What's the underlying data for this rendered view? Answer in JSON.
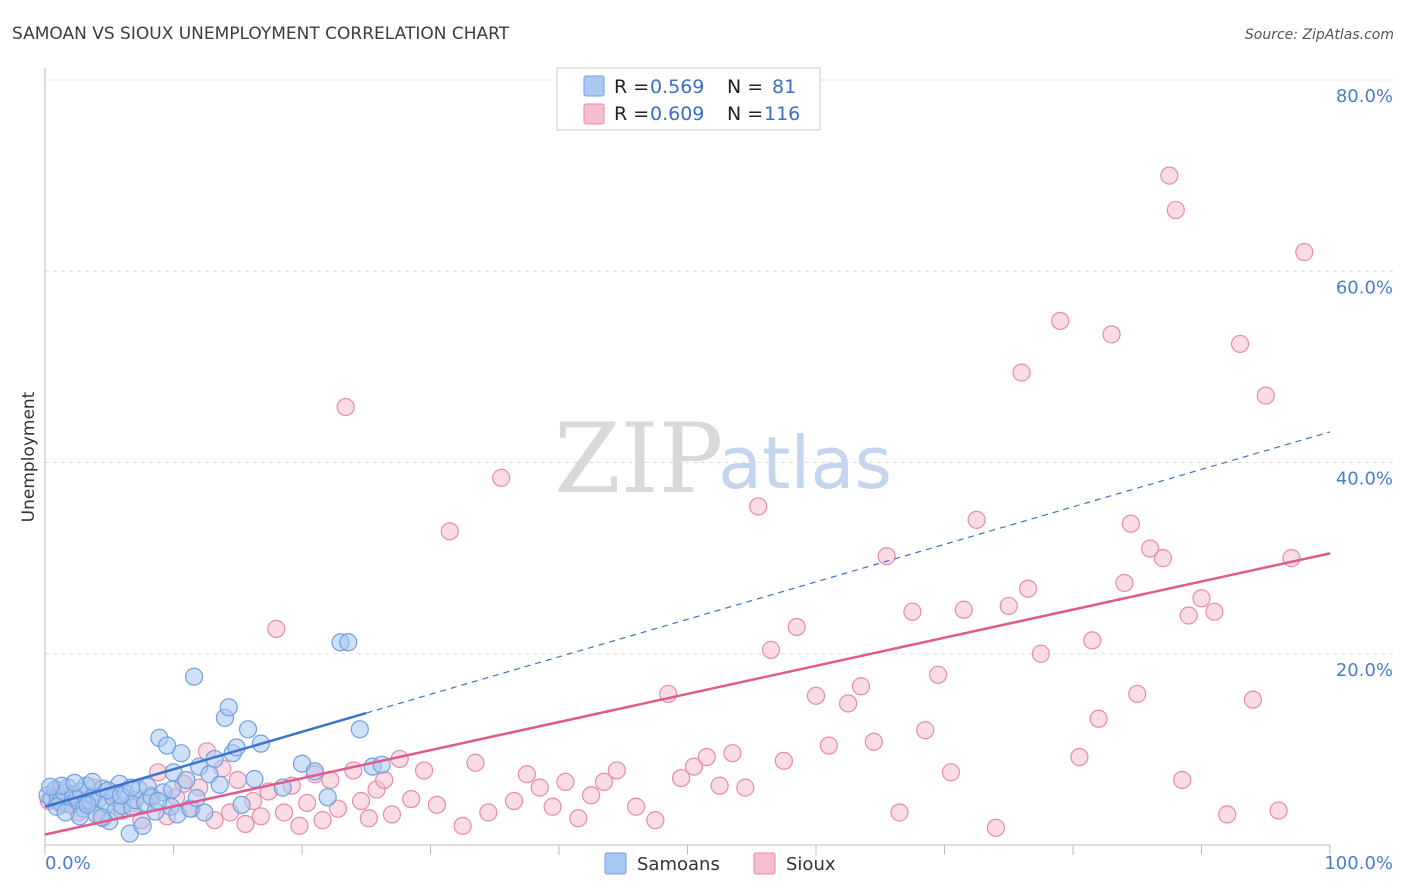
{
  "chart_data": {
    "type": "scatter",
    "title": "SAMOAN VS SIOUX UNEMPLOYMENT CORRELATION CHART",
    "source": "Source: ZipAtlas.com",
    "ylabel": "Unemployment",
    "xlabel": "",
    "xlim": [
      0,
      100
    ],
    "ylim": [
      0,
      80
    ],
    "x_tick_labels": [
      "0.0%",
      "100.0%"
    ],
    "y_ticks": [
      20,
      40,
      60,
      80
    ],
    "y_tick_labels": [
      "20.0%",
      "40.0%",
      "60.0%",
      "80.0%"
    ],
    "watermark": {
      "zip": "ZIP",
      "atlas": "atlas"
    },
    "legend": {
      "r_label": "R =",
      "n_label": "N =",
      "entries": [
        {
          "name": "Samoans",
          "r": "0.569",
          "n": "81"
        },
        {
          "name": "Sioux",
          "r": "0.609",
          "n": "116"
        }
      ]
    },
    "series": [
      {
        "name": "Samoans",
        "color": "#6fa0e0",
        "fill": "#a9c7ef",
        "line_color": "#3a74cc",
        "trend": {
          "x0": 0,
          "y0": 4.0,
          "x1": 25,
          "y1": 13.8,
          "dashed_to_x": 100,
          "dashed_to_y": 43.2
        },
        "points": [
          [
            0.2,
            5.2
          ],
          [
            0.5,
            4.8
          ],
          [
            0.8,
            5.8
          ],
          [
            1.0,
            5.0
          ],
          [
            1.2,
            4.5
          ],
          [
            1.5,
            5.5
          ],
          [
            1.8,
            6.0
          ],
          [
            2.0,
            4.2
          ],
          [
            2.2,
            5.3
          ],
          [
            2.5,
            4.9
          ],
          [
            2.8,
            5.6
          ],
          [
            3.0,
            3.8
          ],
          [
            3.2,
            6.2
          ],
          [
            3.5,
            4.6
          ],
          [
            3.8,
            5.1
          ],
          [
            4.0,
            3.2
          ],
          [
            4.2,
            4.8
          ],
          [
            4.5,
            5.9
          ],
          [
            4.8,
            4.3
          ],
          [
            5.0,
            2.5
          ],
          [
            5.3,
            5.0
          ],
          [
            5.5,
            3.6
          ],
          [
            5.8,
            6.4
          ],
          [
            6.0,
            4.1
          ],
          [
            6.3,
            5.4
          ],
          [
            6.6,
            1.2
          ],
          [
            6.8,
            3.9
          ],
          [
            7.0,
            4.7
          ],
          [
            7.3,
            5.8
          ],
          [
            7.6,
            2.0
          ],
          [
            7.8,
            4.4
          ],
          [
            8.0,
            6.1
          ],
          [
            8.3,
            5.0
          ],
          [
            8.6,
            3.5
          ],
          [
            8.9,
            11.2
          ],
          [
            9.2,
            5.5
          ],
          [
            9.5,
            10.4
          ],
          [
            9.8,
            4.0
          ],
          [
            10.0,
            7.6
          ],
          [
            10.3,
            3.2
          ],
          [
            10.6,
            9.6
          ],
          [
            11.0,
            6.8
          ],
          [
            11.3,
            3.8
          ],
          [
            11.6,
            17.6
          ],
          [
            12.0,
            8.2
          ],
          [
            12.4,
            3.4
          ],
          [
            12.8,
            7.4
          ],
          [
            13.2,
            9.0
          ],
          [
            13.6,
            6.3
          ],
          [
            14.0,
            13.3
          ],
          [
            14.3,
            14.4
          ],
          [
            14.6,
            9.6
          ],
          [
            14.9,
            10.2
          ],
          [
            15.3,
            4.2
          ],
          [
            15.8,
            12.1
          ],
          [
            16.3,
            6.9
          ],
          [
            16.8,
            10.6
          ],
          [
            18.5,
            6.0
          ],
          [
            20.0,
            8.5
          ],
          [
            21.0,
            7.7
          ],
          [
            22.0,
            5.0
          ],
          [
            23.0,
            21.2
          ],
          [
            23.6,
            21.2
          ],
          [
            24.5,
            12.1
          ],
          [
            25.5,
            8.2
          ],
          [
            26.2,
            8.4
          ],
          [
            1.3,
            6.2
          ],
          [
            2.7,
            3.0
          ],
          [
            3.7,
            6.6
          ],
          [
            4.9,
            5.7
          ],
          [
            0.4,
            6.1
          ],
          [
            0.9,
            4.0
          ],
          [
            1.6,
            3.4
          ],
          [
            2.3,
            6.5
          ],
          [
            3.3,
            4.2
          ],
          [
            4.4,
            2.9
          ],
          [
            5.9,
            5.2
          ],
          [
            6.7,
            6.0
          ],
          [
            8.8,
            4.6
          ],
          [
            9.9,
            5.8
          ],
          [
            11.8,
            4.9
          ]
        ]
      },
      {
        "name": "Sioux",
        "color": "#e88aaa",
        "fill": "#f5bfd1",
        "line_color": "#e05a8c",
        "trend": {
          "x0": 0,
          "y0": 1.1,
          "x1": 100,
          "y1": 30.5
        },
        "points": [
          [
            0.3,
            4.6
          ],
          [
            0.8,
            5.8
          ],
          [
            1.3,
            4.2
          ],
          [
            2.0,
            5.1
          ],
          [
            2.6,
            3.4
          ],
          [
            3.2,
            4.8
          ],
          [
            3.8,
            6.0
          ],
          [
            4.5,
            2.8
          ],
          [
            5.2,
            5.5
          ],
          [
            6.0,
            3.6
          ],
          [
            6.8,
            4.4
          ],
          [
            7.5,
            2.6
          ],
          [
            8.2,
            5.2
          ],
          [
            8.8,
            7.6
          ],
          [
            9.5,
            3.0
          ],
          [
            10.2,
            5.0
          ],
          [
            10.8,
            6.4
          ],
          [
            11.4,
            3.8
          ],
          [
            12.0,
            6.0
          ],
          [
            12.6,
            9.8
          ],
          [
            13.2,
            2.6
          ],
          [
            13.8,
            8.0
          ],
          [
            14.4,
            3.4
          ],
          [
            15.0,
            6.8
          ],
          [
            15.6,
            2.2
          ],
          [
            16.2,
            4.6
          ],
          [
            16.8,
            3.0
          ],
          [
            17.4,
            5.6
          ],
          [
            18.0,
            22.6
          ],
          [
            18.6,
            3.4
          ],
          [
            19.2,
            6.2
          ],
          [
            19.8,
            2.0
          ],
          [
            20.4,
            4.4
          ],
          [
            21.0,
            7.4
          ],
          [
            21.6,
            2.6
          ],
          [
            22.2,
            6.8
          ],
          [
            22.8,
            3.8
          ],
          [
            23.4,
            45.8
          ],
          [
            24.0,
            7.8
          ],
          [
            24.6,
            4.6
          ],
          [
            25.2,
            2.8
          ],
          [
            25.8,
            5.8
          ],
          [
            26.4,
            6.8
          ],
          [
            27.0,
            3.2
          ],
          [
            27.6,
            9.0
          ],
          [
            28.5,
            4.8
          ],
          [
            29.5,
            7.8
          ],
          [
            30.5,
            4.2
          ],
          [
            31.5,
            32.8
          ],
          [
            32.5,
            2.0
          ],
          [
            33.5,
            8.6
          ],
          [
            34.5,
            3.4
          ],
          [
            35.5,
            38.4
          ],
          [
            36.5,
            4.6
          ],
          [
            37.5,
            7.4
          ],
          [
            38.5,
            6.0
          ],
          [
            39.5,
            4.0
          ],
          [
            40.5,
            6.6
          ],
          [
            41.5,
            2.8
          ],
          [
            42.5,
            5.2
          ],
          [
            43.5,
            6.6
          ],
          [
            44.5,
            7.8
          ],
          [
            46.0,
            4.0
          ],
          [
            47.5,
            2.6
          ],
          [
            48.5,
            15.8
          ],
          [
            49.5,
            7.0
          ],
          [
            50.5,
            8.2
          ],
          [
            51.5,
            9.2
          ],
          [
            52.5,
            6.2
          ],
          [
            53.5,
            9.6
          ],
          [
            54.5,
            6.0
          ],
          [
            55.5,
            35.4
          ],
          [
            56.5,
            20.4
          ],
          [
            57.5,
            8.8
          ],
          [
            58.5,
            22.8
          ],
          [
            60.0,
            15.6
          ],
          [
            61.0,
            10.4
          ],
          [
            62.5,
            14.8
          ],
          [
            63.5,
            16.6
          ],
          [
            64.5,
            10.8
          ],
          [
            65.5,
            30.2
          ],
          [
            66.5,
            3.4
          ],
          [
            67.5,
            24.4
          ],
          [
            68.5,
            12.0
          ],
          [
            69.5,
            17.8
          ],
          [
            70.5,
            7.6
          ],
          [
            71.5,
            24.6
          ],
          [
            72.5,
            34.0
          ],
          [
            74.0,
            1.8
          ],
          [
            75.0,
            25.0
          ],
          [
            76.0,
            49.4
          ],
          [
            76.5,
            26.8
          ],
          [
            77.5,
            20.0
          ],
          [
            79.0,
            54.8
          ],
          [
            80.5,
            9.2
          ],
          [
            81.5,
            21.4
          ],
          [
            82.0,
            13.2
          ],
          [
            83.0,
            53.4
          ],
          [
            84.0,
            27.4
          ],
          [
            85.0,
            15.8
          ],
          [
            86.0,
            31.0
          ],
          [
            87.0,
            30.0
          ],
          [
            87.5,
            70.0
          ],
          [
            88.0,
            66.4
          ],
          [
            88.5,
            6.8
          ],
          [
            89.0,
            24.0
          ],
          [
            90.0,
            25.8
          ],
          [
            91.0,
            24.4
          ],
          [
            92.0,
            3.2
          ],
          [
            93.0,
            52.4
          ],
          [
            94.0,
            15.2
          ],
          [
            95.0,
            47.0
          ],
          [
            96.0,
            3.6
          ],
          [
            97.0,
            30.0
          ],
          [
            98.0,
            62.0
          ],
          [
            84.5,
            33.6
          ]
        ]
      }
    ]
  }
}
